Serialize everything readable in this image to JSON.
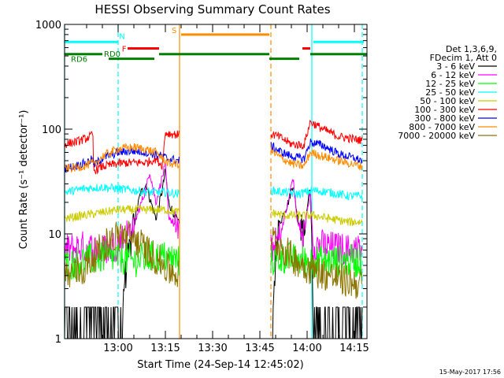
{
  "chart_data": {
    "type": "line",
    "title": "HESSI Observing Summary Count Rates",
    "xlabel": "Start Time (24-Sep-14 12:45:02)",
    "ylabel": "Count Rate (s⁻¹ detector⁻¹)",
    "y_scale": "log",
    "ylim": [
      1,
      1000
    ],
    "xlim_minutes": [
      -2,
      94
    ],
    "x_tick_labels": [
      "13:00",
      "13:15",
      "13:30",
      "13:45",
      "14:00",
      "14:15"
    ],
    "x_tick_minutes": [
      15,
      30,
      45,
      60,
      75,
      90
    ],
    "y_tick_labels": [
      "1",
      "10",
      "100",
      "1000"
    ],
    "y_tick_values": [
      1,
      10,
      100,
      1000
    ],
    "legend": {
      "header_lines": [
        "Det 1,3,6,9,",
        "FDecim 1, Att 0"
      ],
      "entries": [
        {
          "label": "3 - 6 keV",
          "color": "#000000"
        },
        {
          "label": "6 - 12 keV",
          "color": "#ff00ff"
        },
        {
          "label": "12 - 25 keV",
          "color": "#00ff00"
        },
        {
          "label": "25 - 50 keV",
          "color": "#00ffff"
        },
        {
          "label": "50 - 100 keV",
          "color": "#cccc00"
        },
        {
          "label": "100 - 300 keV",
          "color": "#ff0000"
        },
        {
          "label": "300 - 800 keV",
          "color": "#0000ff"
        },
        {
          "label": "800 - 7000 keV",
          "color": "#ff8c00"
        },
        {
          "label": "7000 - 20000 keV",
          "color": "#8b7500"
        }
      ]
    },
    "flag_labels": {
      "N": "N",
      "F": "F",
      "S": "S",
      "RD0": "RD0",
      "RD6": "RD6"
    },
    "flag_bars": [
      {
        "flag": "N",
        "color": "#00ffff",
        "level": 680,
        "ranges": [
          [
            -2,
            15
          ],
          [
            77,
            93
          ]
        ]
      },
      {
        "flag": "F",
        "color": "#ff0000",
        "level": 590,
        "ranges": [
          [
            18,
            28
          ],
          [
            73.5,
            76
          ]
        ]
      },
      {
        "flag": "S",
        "color": "#ff8c00",
        "level": 800,
        "ranges": [
          [
            35,
            63
          ]
        ]
      },
      {
        "flag": "RD0",
        "color": "#008000",
        "level": 520,
        "ranges": [
          [
            -2,
            10
          ],
          [
            28,
            63
          ],
          [
            76,
            94
          ]
        ]
      },
      {
        "flag": "RD6",
        "color": "#008000",
        "level": 470,
        "ranges": [
          [
            12,
            26.5
          ],
          [
            63,
            72.5
          ]
        ]
      }
    ],
    "gap_lines": [
      {
        "minute": -2,
        "color": "#00ffff",
        "style": "solid"
      },
      {
        "minute": 15,
        "color": "#00ffff",
        "style": "dashed"
      },
      {
        "minute": 34.5,
        "color": "#ff8c00",
        "style": "solid"
      },
      {
        "minute": 63.5,
        "color": "#ff8c00",
        "style": "dashed"
      },
      {
        "minute": 76.5,
        "color": "#00ffff",
        "style": "solid"
      },
      {
        "minute": 92.5,
        "color": "#00ffff",
        "style": "dashed"
      }
    ],
    "segments": [
      [
        -2,
        34.5
      ],
      [
        63.5,
        92.5
      ]
    ],
    "series": [
      {
        "name": "3 - 6 keV",
        "color": "#000000",
        "points": [
          [
            -2,
            1.6
          ],
          [
            4,
            1.6
          ],
          [
            10,
            1.6
          ],
          [
            15,
            1.6
          ],
          [
            20,
            12
          ],
          [
            22,
            24
          ],
          [
            24,
            30
          ],
          [
            25,
            22
          ],
          [
            27,
            14
          ],
          [
            29,
            26
          ],
          [
            30,
            40
          ],
          [
            31,
            20
          ],
          [
            33,
            15
          ],
          [
            34.5,
            12
          ],
          [
            63.5,
            1.6
          ],
          [
            66,
            12
          ],
          [
            69,
            20
          ],
          [
            70.5,
            30
          ],
          [
            72,
            14
          ],
          [
            74,
            10
          ],
          [
            76,
            30
          ],
          [
            77,
            1.6
          ],
          [
            82,
            1.6
          ],
          [
            88,
            1.6
          ],
          [
            92.5,
            1.6
          ]
        ]
      },
      {
        "name": "6 - 12 keV",
        "color": "#ff00ff",
        "points": [
          [
            -2,
            7
          ],
          [
            4,
            7.5
          ],
          [
            10,
            7
          ],
          [
            15,
            8
          ],
          [
            20,
            12
          ],
          [
            24,
            28
          ],
          [
            25,
            40
          ],
          [
            27,
            20
          ],
          [
            29,
            35
          ],
          [
            30,
            45
          ],
          [
            31,
            15
          ],
          [
            33,
            12
          ],
          [
            34.5,
            11
          ],
          [
            63.5,
            7
          ],
          [
            66,
            9
          ],
          [
            69,
            20
          ],
          [
            70.5,
            35
          ],
          [
            72,
            12
          ],
          [
            74,
            10
          ],
          [
            76,
            25
          ],
          [
            77,
            8
          ],
          [
            82,
            7.5
          ],
          [
            88,
            7
          ],
          [
            92.5,
            7
          ]
        ]
      },
      {
        "name": "12 - 25 keV",
        "color": "#00ff00",
        "points": [
          [
            -2,
            5
          ],
          [
            4,
            5.5
          ],
          [
            10,
            6
          ],
          [
            15,
            6
          ],
          [
            20,
            5.5
          ],
          [
            25,
            6
          ],
          [
            30,
            6
          ],
          [
            34.5,
            5.5
          ],
          [
            63.5,
            5.5
          ],
          [
            68,
            6
          ],
          [
            72,
            5.5
          ],
          [
            77,
            5.5
          ],
          [
            82,
            5.5
          ],
          [
            88,
            5.5
          ],
          [
            92.5,
            5.5
          ]
        ]
      },
      {
        "name": "25 - 50 keV",
        "color": "#00ffff",
        "points": [
          [
            -2,
            25
          ],
          [
            4,
            27
          ],
          [
            10,
            28
          ],
          [
            15,
            27
          ],
          [
            20,
            26
          ],
          [
            25,
            25
          ],
          [
            30,
            25
          ],
          [
            34.5,
            24
          ],
          [
            63.5,
            26
          ],
          [
            68,
            25
          ],
          [
            72,
            24
          ],
          [
            77,
            26
          ],
          [
            82,
            25
          ],
          [
            88,
            23
          ],
          [
            92.5,
            23
          ]
        ]
      },
      {
        "name": "50 - 100 keV",
        "color": "#cccc00",
        "points": [
          [
            -2,
            14
          ],
          [
            4,
            15
          ],
          [
            10,
            16
          ],
          [
            15,
            17
          ],
          [
            20,
            17
          ],
          [
            25,
            17
          ],
          [
            30,
            17
          ],
          [
            34.5,
            16
          ],
          [
            63.5,
            16
          ],
          [
            68,
            15
          ],
          [
            72,
            15
          ],
          [
            77,
            15
          ],
          [
            82,
            14
          ],
          [
            88,
            13
          ],
          [
            92.5,
            13
          ]
        ]
      },
      {
        "name": "100 - 300 keV",
        "color": "#ff0000",
        "points": [
          [
            -2,
            72
          ],
          [
            2,
            76
          ],
          [
            5,
            82
          ],
          [
            7,
            88
          ],
          [
            7.2,
            40
          ],
          [
            10,
            44
          ],
          [
            15,
            47
          ],
          [
            20,
            48
          ],
          [
            24,
            48
          ],
          [
            27,
            52
          ],
          [
            29,
            45
          ],
          [
            30,
            92
          ],
          [
            34.5,
            88
          ],
          [
            63.5,
            90
          ],
          [
            66,
            85
          ],
          [
            70,
            72
          ],
          [
            74,
            70
          ],
          [
            76,
            118
          ],
          [
            80,
            100
          ],
          [
            85,
            85
          ],
          [
            92.5,
            78
          ]
        ]
      },
      {
        "name": "300 - 800 keV",
        "color": "#0000ff",
        "points": [
          [
            -2,
            42
          ],
          [
            2,
            45
          ],
          [
            5,
            48
          ],
          [
            7,
            52
          ],
          [
            7.2,
            45
          ],
          [
            10,
            53
          ],
          [
            15,
            60
          ],
          [
            20,
            62
          ],
          [
            24,
            60
          ],
          [
            27,
            57
          ],
          [
            29,
            55
          ],
          [
            31,
            52
          ],
          [
            34.5,
            50
          ],
          [
            63.5,
            70
          ],
          [
            66,
            62
          ],
          [
            70,
            55
          ],
          [
            74,
            52
          ],
          [
            76,
            75
          ],
          [
            80,
            70
          ],
          [
            85,
            58
          ],
          [
            92.5,
            50
          ]
        ]
      },
      {
        "name": "800 - 7000 keV",
        "color": "#ff8c00",
        "points": [
          [
            -2,
            42
          ],
          [
            2,
            43
          ],
          [
            5,
            45
          ],
          [
            7,
            48
          ],
          [
            7.2,
            45
          ],
          [
            10,
            55
          ],
          [
            15,
            65
          ],
          [
            20,
            67
          ],
          [
            24,
            64
          ],
          [
            27,
            60
          ],
          [
            29,
            53
          ],
          [
            31,
            47
          ],
          [
            34.5,
            46
          ],
          [
            63.5,
            62
          ],
          [
            66,
            55
          ],
          [
            70,
            47
          ],
          [
            74,
            44
          ],
          [
            76,
            60
          ],
          [
            80,
            55
          ],
          [
            85,
            50
          ],
          [
            92.5,
            44
          ]
        ]
      },
      {
        "name": "7000 - 20000 keV",
        "color": "#8b7500",
        "points": [
          [
            -2,
            4
          ],
          [
            4,
            4.5
          ],
          [
            8,
            6.5
          ],
          [
            12,
            8.5
          ],
          [
            16,
            10
          ],
          [
            20,
            9
          ],
          [
            24,
            7
          ],
          [
            28,
            5.5
          ],
          [
            31,
            4.5
          ],
          [
            34.5,
            4
          ],
          [
            63.5,
            9
          ],
          [
            66,
            8
          ],
          [
            70,
            6
          ],
          [
            74,
            5
          ],
          [
            77,
            4.5
          ],
          [
            82,
            4
          ],
          [
            88,
            3.5
          ],
          [
            92.5,
            3.3
          ]
        ]
      }
    ],
    "footer_timestamp": "15-May-2017 17:56"
  }
}
